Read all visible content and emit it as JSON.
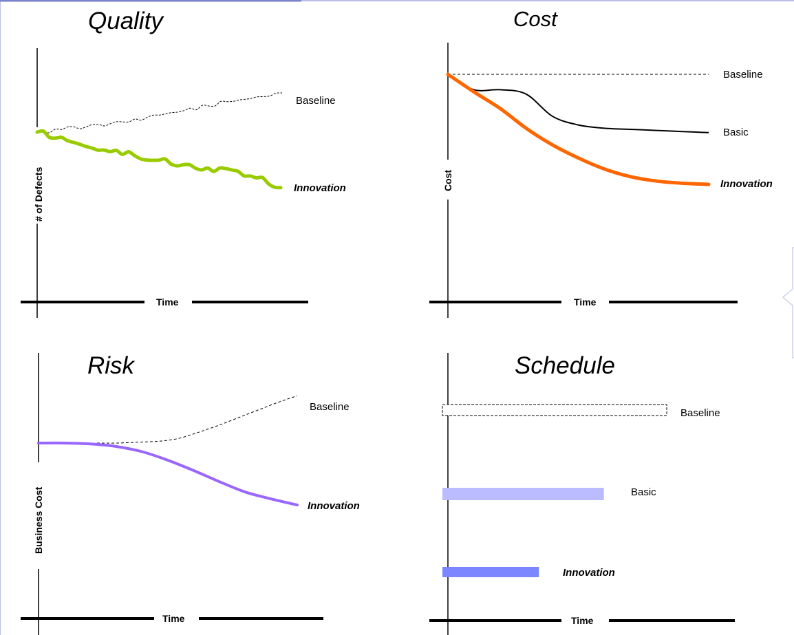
{
  "colors": {
    "quality_innovation": "#99cc00",
    "cost_innovation": "#ff6600",
    "risk_innovation": "#9966ff",
    "schedule_basic": "#bbbbff",
    "schedule_innovation": "#7b86ff",
    "frame": "#b9bde8"
  },
  "chart_data": [
    {
      "type": "line",
      "title": "Quality",
      "xlabel": "Time",
      "ylabel": "# of Defects",
      "series": [
        {
          "name": "Baseline",
          "style": "dashed",
          "values": [
            0.0,
            0.04,
            0.08,
            0.13,
            0.2,
            0.26,
            0.33,
            0.4,
            0.47,
            0.54,
            0.6
          ]
        },
        {
          "name": "Innovation",
          "style": "solid",
          "values": [
            0.0,
            -0.08,
            -0.22,
            -0.3,
            -0.36,
            -0.43,
            -0.5,
            -0.55,
            -0.58,
            -0.7,
            -0.85
          ]
        }
      ]
    },
    {
      "type": "line",
      "title": "Cost",
      "xlabel": "Time",
      "ylabel": "Cost",
      "series": [
        {
          "name": "Baseline",
          "style": "dashed",
          "values": [
            1.0,
            1.0,
            1.0,
            1.0,
            1.0,
            1.0,
            1.0,
            1.0,
            1.0,
            1.0,
            1.0
          ]
        },
        {
          "name": "Basic",
          "style": "solid",
          "values": [
            1.0,
            0.86,
            0.86,
            0.82,
            0.62,
            0.54,
            0.51,
            0.5,
            0.49,
            0.48,
            0.47
          ]
        },
        {
          "name": "Innovation",
          "style": "solid",
          "values": [
            1.0,
            0.84,
            0.69,
            0.51,
            0.36,
            0.24,
            0.14,
            0.07,
            0.03,
            0.01,
            0.0
          ]
        }
      ]
    },
    {
      "type": "line",
      "title": "Risk",
      "xlabel": "Time",
      "ylabel": "Business Cost",
      "series": [
        {
          "name": "Baseline",
          "style": "dashed",
          "values": [
            0.0,
            0.0,
            0.01,
            0.02,
            0.05,
            0.12,
            0.2,
            0.29,
            0.38,
            0.47,
            0.55
          ]
        },
        {
          "name": "Innovation",
          "style": "solid",
          "values": [
            0.0,
            0.0,
            -0.01,
            -0.04,
            -0.1,
            -0.2,
            -0.32,
            -0.45,
            -0.57,
            -0.65,
            -0.72
          ]
        }
      ]
    },
    {
      "type": "bar",
      "orientation": "horizontal",
      "title": "Schedule",
      "xlabel": "Time",
      "categories": [
        "Baseline",
        "Basic",
        "Innovation"
      ],
      "values": [
        1.0,
        0.72,
        0.43
      ]
    }
  ]
}
